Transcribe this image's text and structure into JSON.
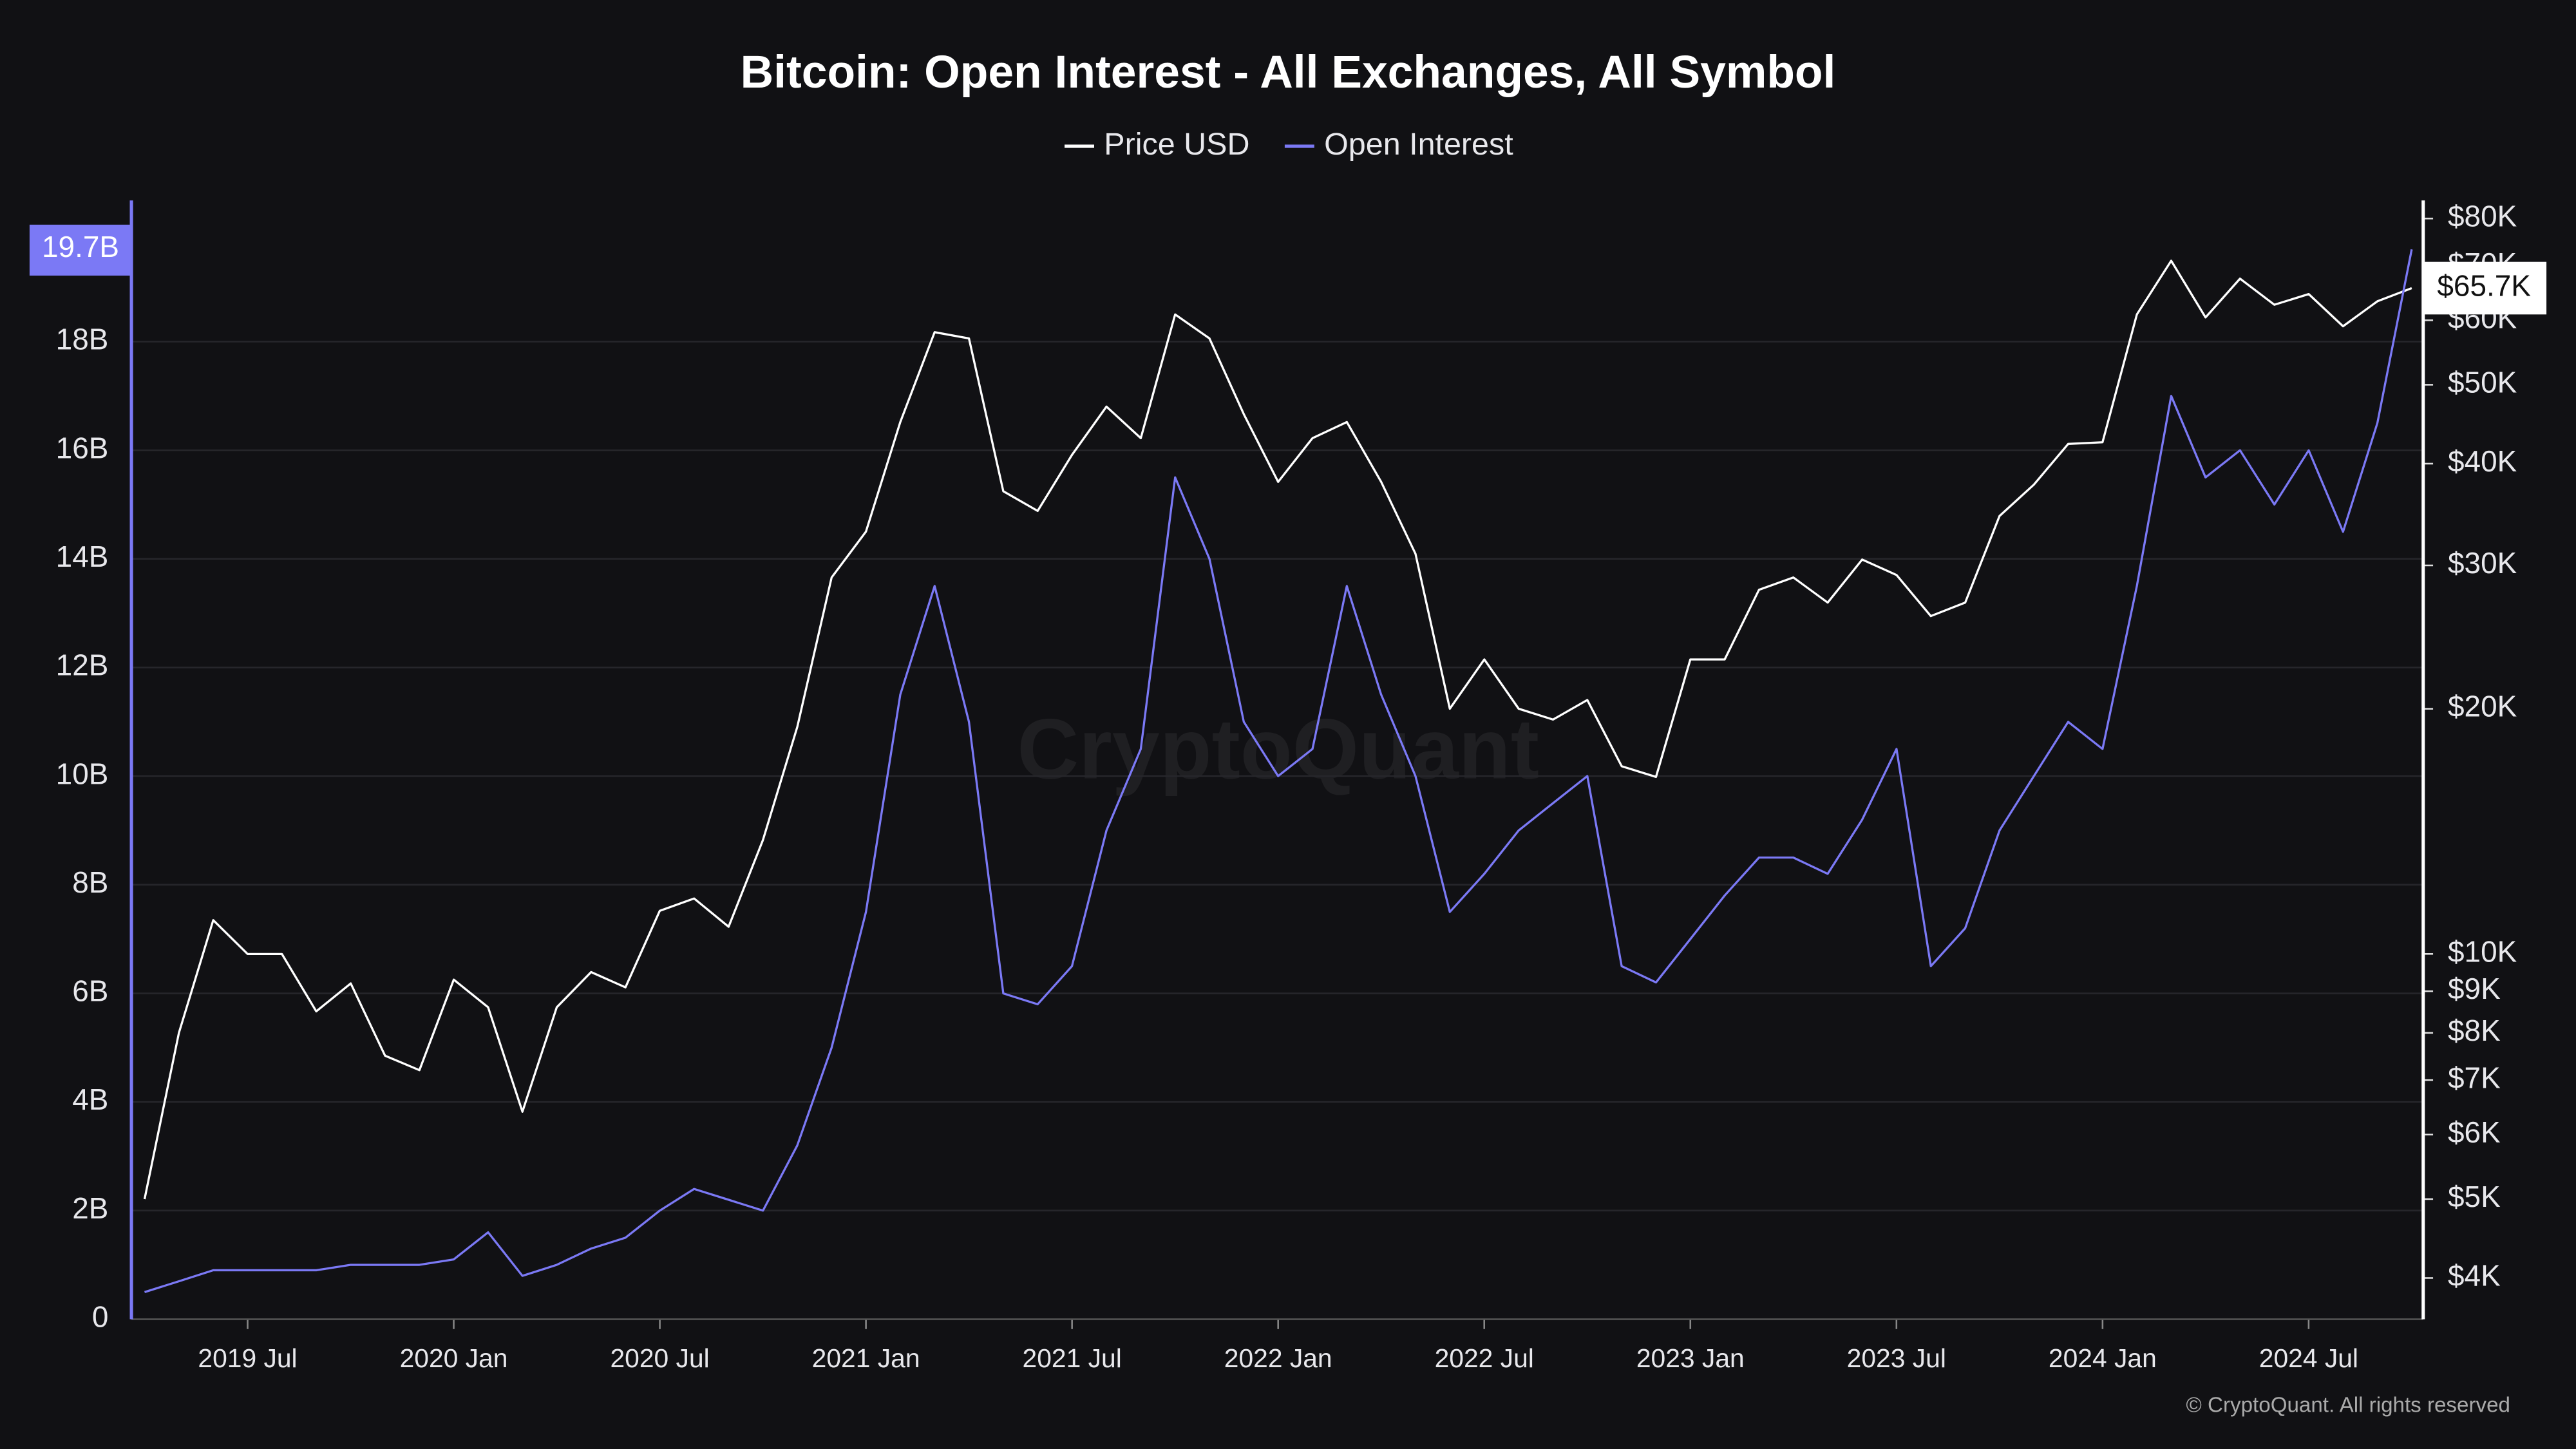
{
  "chart_data": {
    "type": "line",
    "title": "Bitcoin: Open Interest - All Exchanges, All Symbol",
    "watermark": "CryptoQuant",
    "copyright": "© CryptoQuant. All rights reserved",
    "background": "#111114",
    "grid": true,
    "legend": "top",
    "x": [
      "2019-04",
      "2019-05",
      "2019-06",
      "2019-07",
      "2019-08",
      "2019-09",
      "2019-10",
      "2019-11",
      "2019-12",
      "2020-01",
      "2020-02",
      "2020-03",
      "2020-04",
      "2020-05",
      "2020-06",
      "2020-07",
      "2020-08",
      "2020-09",
      "2020-10",
      "2020-11",
      "2020-12",
      "2021-01",
      "2021-02",
      "2021-03",
      "2021-04",
      "2021-05",
      "2021-06",
      "2021-07",
      "2021-08",
      "2021-09",
      "2021-10",
      "2021-11",
      "2021-12",
      "2022-01",
      "2022-02",
      "2022-03",
      "2022-04",
      "2022-05",
      "2022-06",
      "2022-07",
      "2022-08",
      "2022-09",
      "2022-10",
      "2022-11",
      "2022-12",
      "2023-01",
      "2023-02",
      "2023-03",
      "2023-04",
      "2023-05",
      "2023-06",
      "2023-07",
      "2023-08",
      "2023-09",
      "2023-10",
      "2023-11",
      "2023-12",
      "2024-01",
      "2024-02",
      "2024-03",
      "2024-04",
      "2024-05",
      "2024-06",
      "2024-07",
      "2024-08",
      "2024-09",
      "2024-10"
    ],
    "xlim": [
      "2019-04",
      "2024-10"
    ],
    "xticks": [
      {
        "value": "2019-07",
        "label": "2019 Jul"
      },
      {
        "value": "2020-01",
        "label": "2020 Jan"
      },
      {
        "value": "2020-07",
        "label": "2020 Jul"
      },
      {
        "value": "2021-01",
        "label": "2021 Jan"
      },
      {
        "value": "2021-07",
        "label": "2021 Jul"
      },
      {
        "value": "2022-01",
        "label": "2022 Jan"
      },
      {
        "value": "2022-07",
        "label": "2022 Jul"
      },
      {
        "value": "2023-01",
        "label": "2023 Jan"
      },
      {
        "value": "2023-07",
        "label": "2023 Jul"
      },
      {
        "value": "2024-01",
        "label": "2024 Jan"
      },
      {
        "value": "2024-07",
        "label": "2024 Jul"
      }
    ],
    "ylim": [
      0,
      20.6
    ],
    "yticks": [
      0,
      {
        "value": 2,
        "label": "2B"
      },
      {
        "value": 4,
        "label": "4B"
      },
      {
        "value": 6,
        "label": "6B"
      },
      {
        "value": 8,
        "label": "8B"
      },
      {
        "value": 10,
        "label": "10B"
      },
      {
        "value": 12,
        "label": "12B"
      },
      {
        "value": 14,
        "label": "14B"
      },
      {
        "value": 16,
        "label": "16B"
      },
      {
        "value": 18,
        "label": "18B"
      }
    ],
    "y2lim": [
      3560,
      84200
    ],
    "y2log": true,
    "y2ticks": [
      {
        "value": 4000,
        "label": "$4K"
      },
      {
        "value": 5000,
        "label": "$5K"
      },
      {
        "value": 6000,
        "label": "$6K"
      },
      {
        "value": 7000,
        "label": "$7K"
      },
      {
        "value": 8000,
        "label": "$8K"
      },
      {
        "value": 9000,
        "label": "$9K"
      },
      {
        "value": 10000,
        "label": "$10K"
      },
      {
        "value": 20000,
        "label": "$20K"
      },
      {
        "value": 30000,
        "label": "$30K"
      },
      {
        "value": 40000,
        "label": "$40K"
      },
      {
        "value": 50000,
        "label": "$50K"
      },
      {
        "value": 60000,
        "label": "$60K"
      },
      {
        "value": 70000,
        "label": "$70K"
      },
      {
        "value": 80000,
        "label": "$80K"
      }
    ],
    "series": [
      {
        "name": "Price USD",
        "color": "#ffffff",
        "axis": "y2",
        "values": [
          5000,
          8000,
          11000,
          10000,
          10000,
          8500,
          9200,
          7500,
          7200,
          9300,
          8600,
          6400,
          8600,
          9500,
          9100,
          11300,
          11700,
          10800,
          13800,
          19000,
          29000,
          33000,
          45000,
          58000,
          57000,
          37000,
          35000,
          41000,
          47000,
          43000,
          61000,
          57000,
          46000,
          38000,
          43000,
          45000,
          38000,
          31000,
          20000,
          23000,
          20000,
          19400,
          20500,
          17000,
          16500,
          23000,
          23000,
          28000,
          29000,
          27000,
          30500,
          29200,
          26000,
          27000,
          34500,
          37700,
          42300,
          42500,
          61000,
          71000,
          60500,
          67500,
          62700,
          64600,
          59000,
          63300,
          65700
        ],
        "last": {
          "value": 65700,
          "label": "$65.7K"
        }
      },
      {
        "name": "Open Interest",
        "color": "#7b79f5",
        "values": [
          0.5,
          0.7,
          0.9,
          0.9,
          0.9,
          0.9,
          1.0,
          1.0,
          1.0,
          1.1,
          1.6,
          0.8,
          1.0,
          1.3,
          1.5,
          2.0,
          2.4,
          2.2,
          2.0,
          3.2,
          5.0,
          7.5,
          11.5,
          13.5,
          11.0,
          6.0,
          5.8,
          6.5,
          9.0,
          10.5,
          15.5,
          14.0,
          11.0,
          10.0,
          10.5,
          13.5,
          11.5,
          10.0,
          7.5,
          8.2,
          9.0,
          9.5,
          10.0,
          6.5,
          6.2,
          7.0,
          7.8,
          8.5,
          8.5,
          8.2,
          9.2,
          10.5,
          6.5,
          7.2,
          9.0,
          10.0,
          11.0,
          10.5,
          13.5,
          17.0,
          15.5,
          16.0,
          15.0,
          16.0,
          14.5,
          16.5,
          19.7
        ],
        "last": {
          "value": 19.7,
          "label": "19.7B"
        }
      }
    ]
  }
}
